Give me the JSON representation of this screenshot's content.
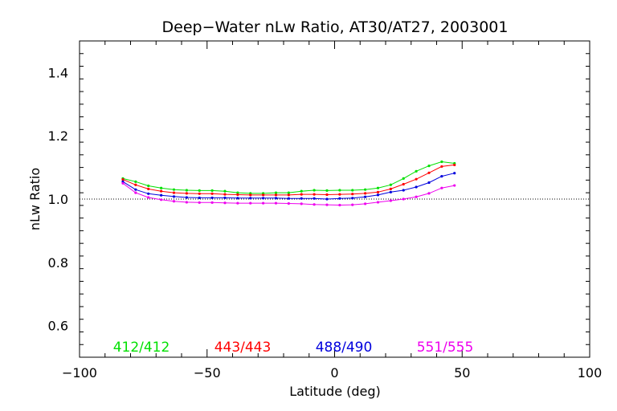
{
  "chart_data": {
    "type": "line",
    "title": "Deep−Water nLw Ratio, AT30/AT27, 2003001",
    "xlabel": "Latitude (deg)",
    "ylabel": "nLw Ratio",
    "xlim": [
      -100,
      100
    ],
    "ylim": [
      0.5,
      1.5
    ],
    "xticks": [
      -100,
      -50,
      0,
      50,
      100
    ],
    "xtick_labels": [
      "−100",
      "−50",
      "0",
      "50",
      "100"
    ],
    "yticks": [
      0.6,
      0.8,
      1.0,
      1.2,
      1.4
    ],
    "ytick_labels": [
      "0.6",
      "0.8",
      "1.0",
      "1.2",
      "1.4"
    ],
    "reference_line": 1.0,
    "x": [
      -83,
      -78,
      -73,
      -68,
      -63,
      -58,
      -53,
      -48,
      -43,
      -38,
      -33,
      -28,
      -23,
      -18,
      -13,
      -8,
      -3,
      2,
      7,
      12,
      17,
      22,
      27,
      32,
      37,
      42,
      47
    ],
    "series": [
      {
        "name": "412/412",
        "color": "#00e000",
        "values": [
          1.065,
          1.055,
          1.042,
          1.035,
          1.03,
          1.028,
          1.027,
          1.027,
          1.025,
          1.02,
          1.018,
          1.018,
          1.02,
          1.02,
          1.025,
          1.028,
          1.027,
          1.028,
          1.028,
          1.03,
          1.035,
          1.045,
          1.065,
          1.088,
          1.105,
          1.118,
          1.113
        ]
      },
      {
        "name": "443/443",
        "color": "#ff0000",
        "values": [
          1.062,
          1.045,
          1.032,
          1.025,
          1.02,
          1.018,
          1.017,
          1.017,
          1.015,
          1.014,
          1.013,
          1.013,
          1.013,
          1.013,
          1.015,
          1.015,
          1.014,
          1.015,
          1.016,
          1.018,
          1.022,
          1.032,
          1.047,
          1.063,
          1.083,
          1.103,
          1.108
        ]
      },
      {
        "name": "488/490",
        "color": "#0000dd",
        "values": [
          1.055,
          1.03,
          1.017,
          1.012,
          1.008,
          1.005,
          1.004,
          1.004,
          1.004,
          1.003,
          1.003,
          1.003,
          1.003,
          1.002,
          1.002,
          1.002,
          1.0,
          1.002,
          1.003,
          1.007,
          1.013,
          1.022,
          1.028,
          1.038,
          1.052,
          1.072,
          1.082
        ]
      },
      {
        "name": "551/555",
        "color": "#ee00ee",
        "values": [
          1.05,
          1.02,
          1.005,
          0.998,
          0.993,
          0.99,
          0.989,
          0.989,
          0.988,
          0.987,
          0.987,
          0.987,
          0.987,
          0.986,
          0.985,
          0.983,
          0.982,
          0.981,
          0.982,
          0.985,
          0.99,
          0.995,
          1.0,
          1.007,
          1.018,
          1.035,
          1.043
        ]
      }
    ],
    "grid": false
  }
}
